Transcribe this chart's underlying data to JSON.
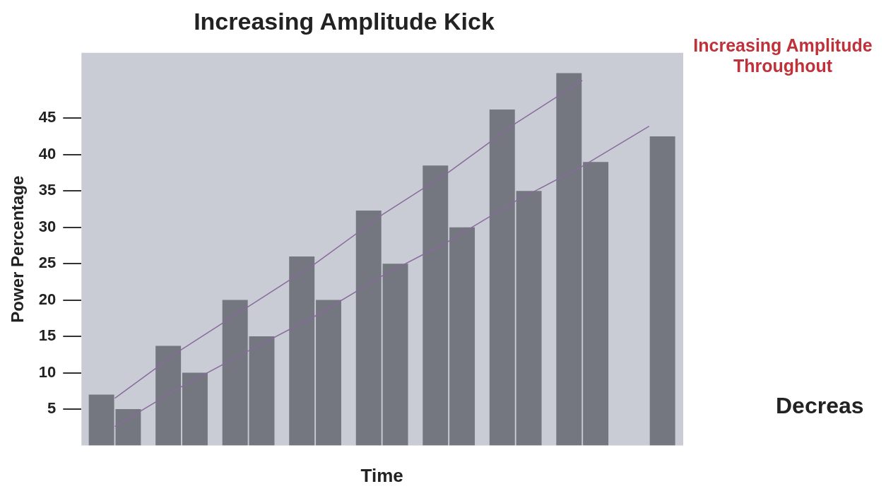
{
  "chart_data": {
    "type": "bar",
    "title": "Increasing Amplitude Kick",
    "xlabel": "Time",
    "ylabel": "Power Percentage",
    "categories": [
      null,
      null,
      null,
      null,
      null,
      null,
      null,
      null,
      null
    ],
    "series": [
      {
        "color": "#74777f",
        "values": [
          7,
          13.7,
          20,
          26,
          32.3,
          38.5,
          46.2,
          51.2,
          null
        ]
      },
      {
        "color": "#74777f",
        "values": [
          5,
          10,
          15,
          20,
          25,
          30,
          35,
          39,
          42.5
        ]
      },
      {
        "type": "line",
        "color": "#8a6a9e",
        "values": [
          6.5,
          13.2,
          19.1,
          25,
          31.7,
          37.6,
          44.3,
          50.2,
          null
        ]
      },
      {
        "type": "line",
        "color": "#8a6a9e",
        "values": [
          2.6,
          8.1,
          13,
          17.8,
          23.3,
          28.1,
          33.6,
          38.4,
          43.9
        ]
      }
    ],
    "ylim": [
      0,
      54
    ],
    "yticks": [
      5,
      10,
      15,
      20,
      25,
      30,
      35,
      40,
      45
    ],
    "grid": false,
    "legend": false,
    "marker": "none",
    "line_style": "solid",
    "annotations": [
      "Increasing Amplitude Throughout",
      "Decreas"
    ]
  }
}
